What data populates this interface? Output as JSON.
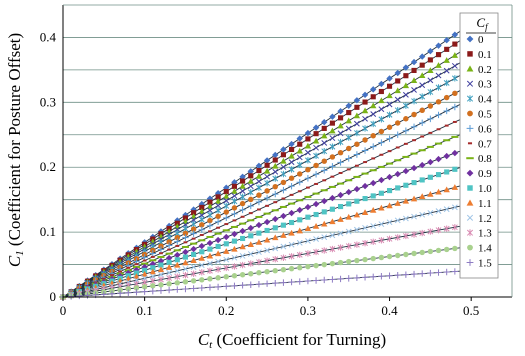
{
  "chart_data": {
    "type": "line",
    "title": "",
    "xlabel_main": "C",
    "xlabel_sub": "t",
    "xlabel_rest": " (Coefficient for Turning)",
    "ylabel_main": "C",
    "ylabel_sub": "1",
    "ylabel_rest": " (Coefficient for Posture Offset)",
    "xlim": [
      0,
      0.55
    ],
    "ylim": [
      0,
      0.45
    ],
    "x_ticks": [
      "0",
      "0.1",
      "0.2",
      "0.3",
      "0.4",
      "0.5"
    ],
    "y_ticks": [
      "0",
      "0.1",
      "0.2",
      "0.3",
      "0.4"
    ],
    "x_tick_values": [
      0,
      0.1,
      0.2,
      0.3,
      0.4,
      0.5
    ],
    "y_tick_values": [
      0,
      0.1,
      0.2,
      0.3,
      0.4
    ],
    "grid": "horizontal",
    "x_range": [
      0,
      0.5
    ],
    "x_step": 0.01,
    "legend": {
      "title_main": "C",
      "title_sub": "f",
      "placement": "right"
    },
    "series": [
      {
        "name": "0",
        "slope": 0.842,
        "color": "#4472C4",
        "marker": "diamond"
      },
      {
        "name": "0.1",
        "slope": 0.812,
        "color": "#8B1A1A",
        "marker": "square"
      },
      {
        "name": "0.2",
        "slope": 0.776,
        "color": "#7AB317",
        "marker": "triangle"
      },
      {
        "name": "0.3",
        "slope": 0.742,
        "color": "#3F3F9F",
        "marker": "x"
      },
      {
        "name": "0.4",
        "slope": 0.702,
        "color": "#3FA0C0",
        "marker": "star"
      },
      {
        "name": "0.5",
        "slope": 0.654,
        "color": "#D2701F",
        "marker": "circle"
      },
      {
        "name": "0.6",
        "slope": 0.61,
        "color": "#5B9BD5",
        "marker": "plus"
      },
      {
        "name": "0.7",
        "slope": 0.562,
        "color": "#A52A2A",
        "marker": "dash"
      },
      {
        "name": "0.8",
        "slope": 0.514,
        "color": "#7AB317",
        "marker": "longdash"
      },
      {
        "name": "0.9",
        "slope": 0.462,
        "color": "#7030A0",
        "marker": "diamond"
      },
      {
        "name": "1.0",
        "slope": 0.41,
        "color": "#4FC4C4",
        "marker": "square"
      },
      {
        "name": "1.1",
        "slope": 0.352,
        "color": "#ED7D31",
        "marker": "triangle"
      },
      {
        "name": "1.2",
        "slope": 0.288,
        "color": "#9DC3E6",
        "marker": "x"
      },
      {
        "name": "1.3",
        "slope": 0.224,
        "color": "#D98CB3",
        "marker": "star"
      },
      {
        "name": "1.4",
        "slope": 0.156,
        "color": "#A9D18E",
        "marker": "circle"
      },
      {
        "name": "1.5",
        "slope": 0.082,
        "color": "#8E7CC3",
        "marker": "plus"
      }
    ]
  }
}
